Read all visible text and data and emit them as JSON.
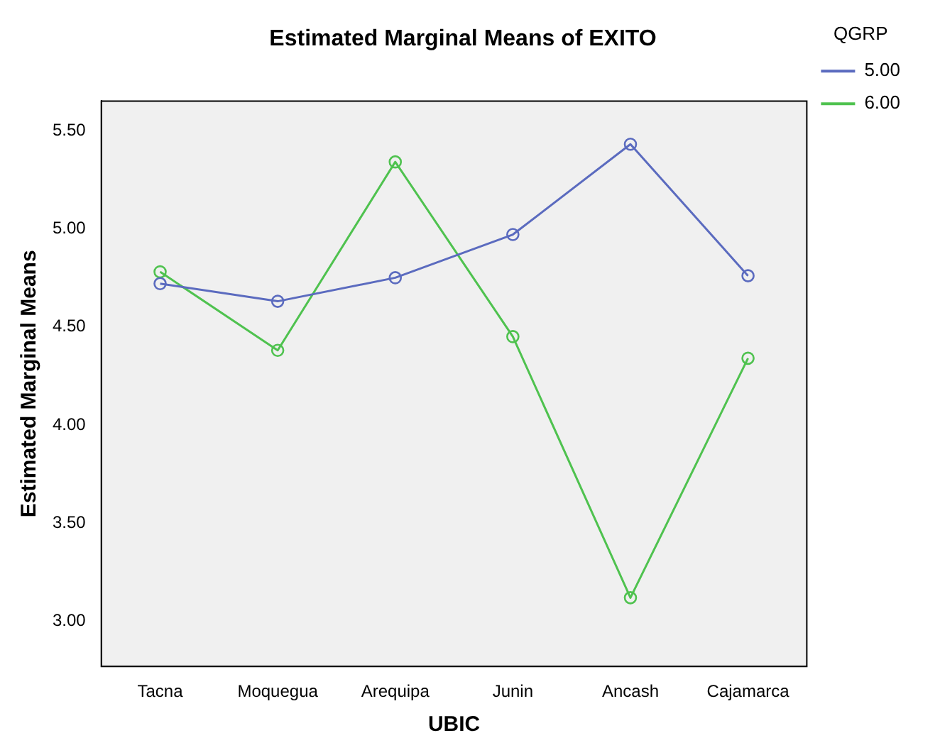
{
  "chart_data": {
    "type": "line",
    "title": "Estimated Marginal Means of EXITO",
    "xlabel": "UBIC",
    "ylabel": "Estimated Marginal Means",
    "legend_title": "QGRP",
    "categories": [
      "Tacna",
      "Moquegua",
      "Arequipa",
      "Junin",
      "Ancash",
      "Cajamarca"
    ],
    "series": [
      {
        "name": "5.00",
        "color": "#5b6bbf",
        "values": [
          4.72,
          4.63,
          4.75,
          4.97,
          5.43,
          4.76
        ]
      },
      {
        "name": "6.00",
        "color": "#4fc24f",
        "values": [
          4.78,
          4.38,
          5.34,
          4.45,
          3.12,
          4.34
        ]
      }
    ],
    "ylim": [
      2.77,
      5.65
    ],
    "yticks": [
      {
        "value": 3,
        "label": "3.00"
      },
      {
        "value": 3.5,
        "label": "3.50"
      },
      {
        "value": 4,
        "label": "4.00"
      },
      {
        "value": 4.5,
        "label": "4.50"
      },
      {
        "value": 5,
        "label": "5.00"
      },
      {
        "value": 5.5,
        "label": "5.50"
      }
    ],
    "grid": false,
    "legend": "top right",
    "marker": "circle",
    "line_style": "solid"
  }
}
